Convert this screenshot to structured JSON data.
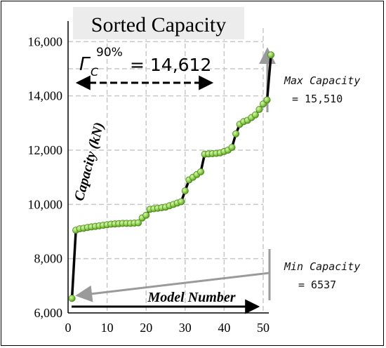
{
  "chart_data": {
    "type": "scatter",
    "title": "Sorted Capacity",
    "xlabel": "Model Number",
    "ylabel": "Capacity (kN)",
    "xlim": [
      0,
      50
    ],
    "ylim": [
      6000,
      16500
    ],
    "xticks": [
      "0",
      "10",
      "20",
      "30",
      "40",
      "50"
    ],
    "yticks": [
      "6,000",
      "8,000",
      "10,000",
      "12,000",
      "14,000",
      "16,000"
    ],
    "grid": true,
    "series": [
      {
        "values": [
          6537,
          9050,
          9100,
          9120,
          9150,
          9170,
          9190,
          9210,
          9230,
          9250,
          9270,
          9280,
          9290,
          9300,
          9300,
          9300,
          9310,
          9320,
          9500,
          9600,
          9820,
          9840,
          9860,
          9880,
          9900,
          9950,
          10000,
          10050,
          10100,
          10500,
          10900,
          11000,
          11100,
          11200,
          11850,
          11860,
          11870,
          11880,
          11900,
          11950,
          12000,
          12100,
          12600,
          12950,
          13050,
          13100,
          13200,
          13300,
          13500,
          13700,
          13850,
          15510
        ]
      }
    ],
    "annotations": {
      "gamma_label": "Γ",
      "gamma_sub": "C",
      "gamma_sup": "90%",
      "gamma_value": "= 14,612",
      "max_label": "Max Capacity",
      "max_value": "= 15,510",
      "min_label": "Min Capacity",
      "min_value": "= 6537"
    },
    "colors": {
      "marker_fill": "#8fd14f",
      "marker_stroke": "#4e8a1e",
      "line": "#000000",
      "grid": "#c8c8c8",
      "arrow": "#9a9a9a"
    }
  }
}
